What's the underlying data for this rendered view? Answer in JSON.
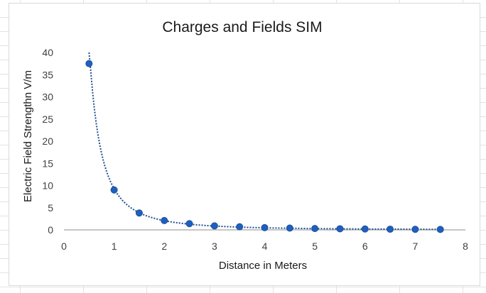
{
  "chart_data": {
    "type": "scatter",
    "title": "Charges and Fields SIM",
    "xlabel": "Distance in Meters",
    "ylabel": "Electric Field Strengthn V/m",
    "xlim": [
      0,
      8
    ],
    "ylim": [
      0,
      40
    ],
    "xticks": [
      0,
      1,
      2,
      3,
      4,
      5,
      6,
      7,
      8
    ],
    "yticks": [
      0,
      5,
      10,
      15,
      20,
      25,
      30,
      35,
      40
    ],
    "grid": false,
    "legend": "none",
    "trendline": "dotted power fit",
    "series": [
      {
        "x": [
          0.5,
          1,
          1.5,
          2,
          2.5,
          3,
          3.5,
          4,
          4.5,
          5,
          5.5,
          6,
          6.5,
          7,
          7.5
        ],
        "y": [
          37.5,
          9,
          3.8,
          2.1,
          1.4,
          0.9,
          0.7,
          0.5,
          0.4,
          0.3,
          0.25,
          0.2,
          0.15,
          0.12,
          0.1
        ]
      }
    ],
    "colors": {
      "marker": "#1f5fbf",
      "marker_edge": "#1a4f9c",
      "trendline": "#1f4e8c",
      "axis": "#8c8c8c"
    }
  }
}
